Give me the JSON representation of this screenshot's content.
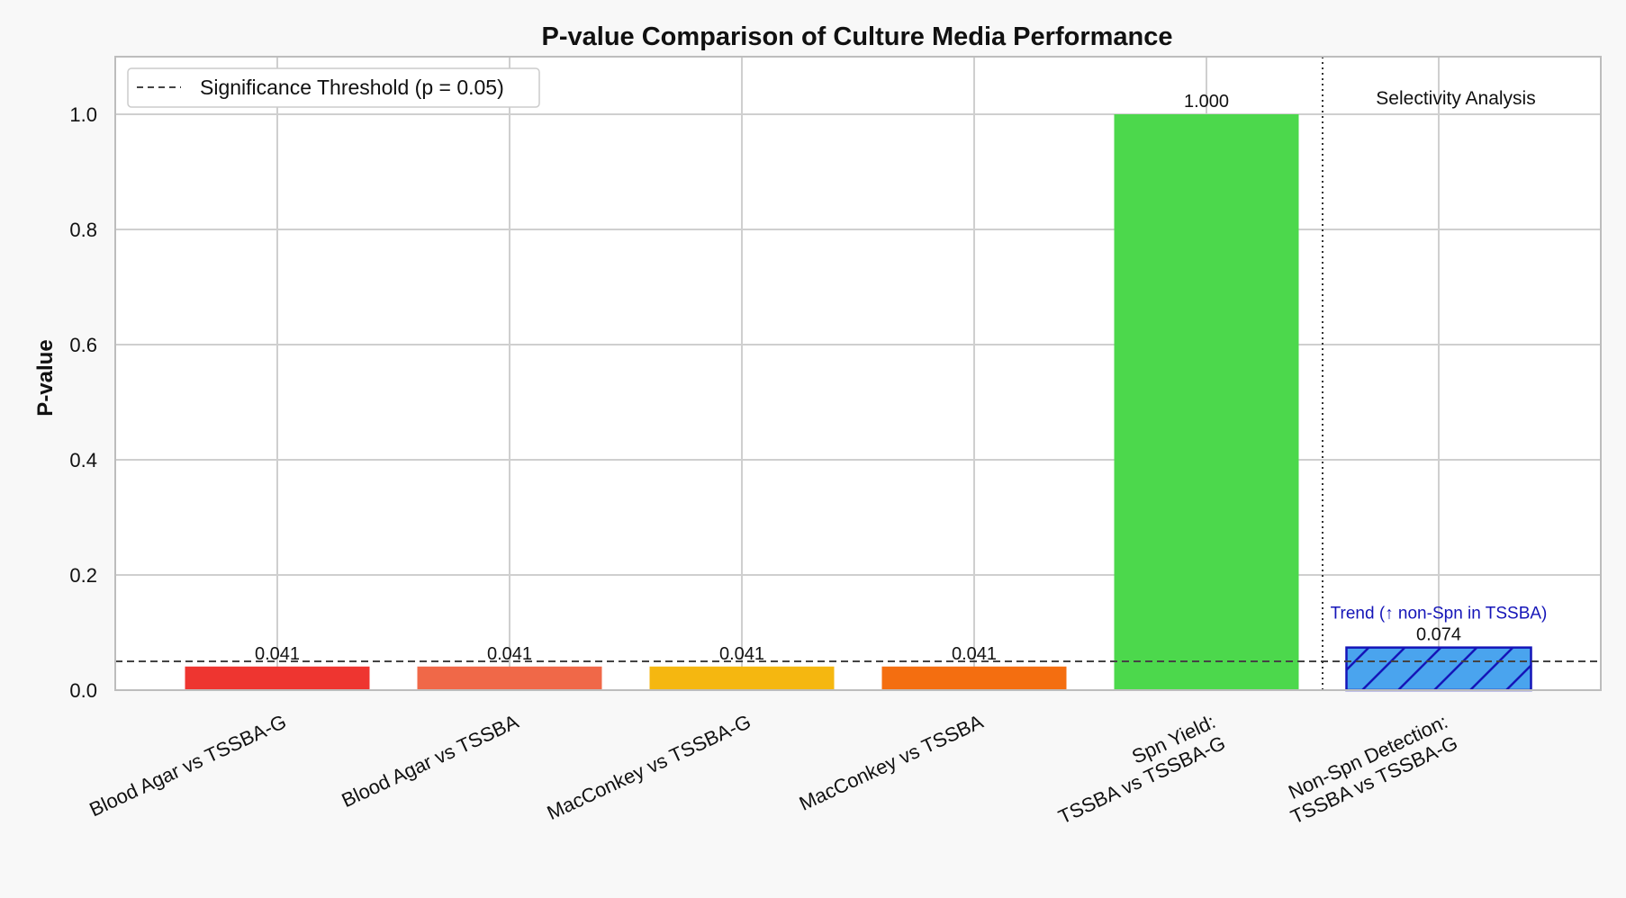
{
  "chart_data": {
    "type": "bar",
    "title": "P-value Comparison of Culture Media Performance",
    "xlabel": "",
    "ylabel": "P-value",
    "ylim": [
      0,
      1.1
    ],
    "yticks": [
      "0.0",
      "0.2",
      "0.4",
      "0.6",
      "0.8",
      "1.0"
    ],
    "grid": true,
    "categories": [
      [
        "Blood Agar vs TSSBA-G"
      ],
      [
        "Blood Agar vs TSSBA"
      ],
      [
        "MacConkey vs TSSBA-G"
      ],
      [
        "MacConkey vs TSSBA"
      ],
      [
        "Spn Yield:",
        "TSSBA vs TSSBA-G"
      ],
      [
        "Non-Spn Detection:",
        "TSSBA vs TSSBA-G"
      ]
    ],
    "values": [
      0.041,
      0.041,
      0.041,
      0.041,
      1.0,
      0.074
    ],
    "value_labels": [
      "0.041",
      "0.041",
      "0.041",
      "0.041",
      "1.000",
      "0.074"
    ],
    "colors": [
      "#ee3530",
      "#f06848",
      "#f5b710",
      "#f46e10",
      "#4cd84c",
      "#4aa4ee"
    ],
    "hatched": [
      false,
      false,
      false,
      false,
      false,
      true
    ],
    "hatch_color": "#1515b8",
    "threshold": {
      "value": 0.05,
      "label": "Significance Threshold (p = 0.05)"
    },
    "legend_position": "top-left",
    "section_label": "Selectivity Analysis",
    "annotation": {
      "text": "Trend (↑ non-Spn in TSSBA)",
      "color": "#1515b8"
    }
  }
}
